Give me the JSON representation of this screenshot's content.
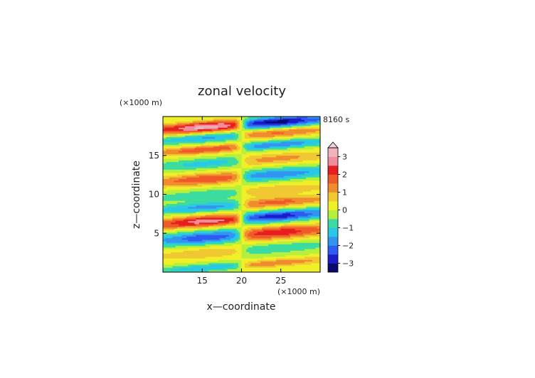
{
  "chart_data": {
    "type": "heatmap",
    "title": "zonal velocity",
    "xlabel": "x—coordinate",
    "ylabel": "z—coordinate",
    "x_unit": "(×1000 m)",
    "y_unit": "(×1000 m)",
    "time_label": "8160 s",
    "xlim": [
      10,
      30
    ],
    "ylim": [
      0,
      20
    ],
    "x_ticks": [
      15,
      20,
      25
    ],
    "y_ticks": [
      5,
      10,
      15
    ],
    "colorbar": {
      "ticks": [
        3,
        2,
        1,
        0,
        -1,
        -2,
        -3
      ],
      "levels": [
        -3.5,
        -3,
        -2.5,
        -2,
        -1.5,
        -1,
        -0.5,
        0,
        0.5,
        1,
        1.5,
        2,
        2.5,
        3,
        3.5
      ],
      "colors": [
        "#0a0a6e",
        "#1c1ccc",
        "#2d5cf2",
        "#3296f0",
        "#28c8e6",
        "#3cdca0",
        "#b4f03c",
        "#f0f028",
        "#f0c832",
        "#f08c2d",
        "#f05a28",
        "#e61e1e",
        "#f08c9b",
        "#f0b4be"
      ],
      "over_color": "#f0d2d7"
    }
  }
}
